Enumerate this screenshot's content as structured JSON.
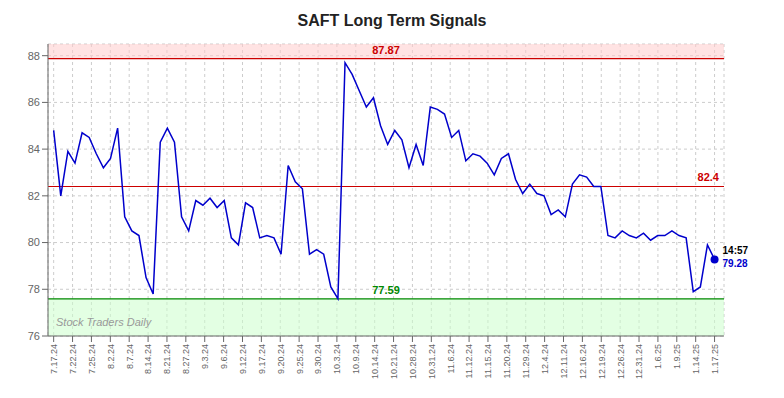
{
  "chart_data": {
    "type": "line",
    "title": "SAFT Long Term Signals",
    "x": [
      0,
      0.3763,
      0.7527,
      1.129,
      1.5054,
      1.8817,
      2.2581,
      2.6344,
      3.0108,
      3.3871,
      3.7634,
      4.1398,
      4.5161,
      4.8925,
      5.2688,
      5.6452,
      6.0215,
      6.3978,
      6.7742,
      7.1505,
      7.5269,
      7.9032,
      8.2796,
      8.6559,
      9.0323,
      9.4086,
      9.7849,
      10.1613,
      10.5376,
      10.914,
      11.2903,
      11.6667,
      12.043,
      12.4194,
      12.7957,
      13.172,
      13.5484,
      13.9247,
      14.3011,
      14.6774,
      15.0538,
      15.4301,
      15.8065,
      16.1828,
      16.5591,
      16.9355,
      17.3118,
      17.6882,
      18.0645,
      18.4409,
      18.8172,
      19.1935,
      19.5699,
      19.9462,
      20.3226,
      20.6989,
      21.0753,
      21.4516,
      21.828,
      22.2043,
      22.5806,
      22.957,
      23.3333,
      23.7097,
      24.086,
      24.4624,
      24.8387,
      25.2151,
      25.5914,
      25.9677,
      26.3441,
      26.7204,
      27.0968,
      27.4731,
      27.8495,
      28.2258,
      28.6022,
      28.9785,
      29.3548,
      29.7312,
      30.1075,
      30.4839,
      30.8602,
      31.2366,
      31.6129,
      31.9892,
      32.3656,
      32.7419,
      33.1183,
      33.4946,
      33.871,
      34.2473,
      34.6237,
      35
    ],
    "values": [
      84.8,
      82.0,
      83.9,
      83.4,
      84.7,
      84.5,
      83.8,
      83.2,
      83.6,
      84.9,
      81.1,
      80.5,
      80.3,
      78.5,
      77.8,
      84.3,
      84.9,
      84.3,
      81.1,
      80.5,
      81.8,
      81.6,
      81.9,
      81.5,
      81.8,
      80.2,
      79.9,
      81.7,
      81.5,
      80.2,
      80.3,
      80.2,
      79.5,
      83.3,
      82.6,
      82.3,
      79.5,
      79.7,
      79.5,
      78.1,
      77.6,
      87.7,
      87.2,
      86.5,
      85.8,
      86.2,
      85.0,
      84.2,
      84.8,
      84.4,
      83.2,
      84.2,
      83.3,
      85.8,
      85.7,
      85.5,
      84.5,
      84.8,
      83.5,
      83.8,
      83.7,
      83.4,
      82.9,
      83.6,
      83.8,
      82.7,
      82.1,
      82.5,
      82.1,
      82.0,
      81.2,
      81.4,
      81.1,
      82.5,
      82.9,
      82.8,
      82.4,
      82.4,
      80.3,
      80.2,
      80.5,
      80.3,
      80.2,
      80.4,
      80.1,
      80.3,
      80.3,
      80.5,
      80.3,
      80.2,
      77.9,
      78.1,
      79.9,
      79.28
    ],
    "color": "#0000cc",
    "xlim": [
      -0.3,
      35.5
    ],
    "xticks": [
      {
        "value": 0,
        "label": "7.17.24"
      },
      {
        "value": 1,
        "label": "7.22.24"
      },
      {
        "value": 2,
        "label": "7.25.24"
      },
      {
        "value": 3,
        "label": "8.2.24"
      },
      {
        "value": 4,
        "label": "8.7.24"
      },
      {
        "value": 5,
        "label": "8.14.24"
      },
      {
        "value": 6,
        "label": "8.21.24"
      },
      {
        "value": 7,
        "label": "8.27.24"
      },
      {
        "value": 8,
        "label": "9.3.24"
      },
      {
        "value": 9,
        "label": "9.6.24"
      },
      {
        "value": 10,
        "label": "9.12.24"
      },
      {
        "value": 11,
        "label": "9.17.24"
      },
      {
        "value": 12,
        "label": "9.20.24"
      },
      {
        "value": 13,
        "label": "9.25.24"
      },
      {
        "value": 14,
        "label": "9.30.24"
      },
      {
        "value": 15,
        "label": "10.3.24"
      },
      {
        "value": 16,
        "label": "10.9.24"
      },
      {
        "value": 17,
        "label": "10.14.24"
      },
      {
        "value": 18,
        "label": "10.21.24"
      },
      {
        "value": 19,
        "label": "10.28.24"
      },
      {
        "value": 20,
        "label": "10.31.24"
      },
      {
        "value": 21,
        "label": "11.6.24"
      },
      {
        "value": 22,
        "label": "11.12.24"
      },
      {
        "value": 23,
        "label": "11.15.24"
      },
      {
        "value": 24,
        "label": "11.20.24"
      },
      {
        "value": 25,
        "label": "11.29.24"
      },
      {
        "value": 26,
        "label": "12.4.24"
      },
      {
        "value": 27,
        "label": "12.11.24"
      },
      {
        "value": 28,
        "label": "12.16.24"
      },
      {
        "value": 29,
        "label": "12.19.24"
      },
      {
        "value": 30,
        "label": "12.26.24"
      },
      {
        "value": 31,
        "label": "12.31.24"
      },
      {
        "value": 32,
        "label": "1.6.25"
      },
      {
        "value": 33,
        "label": "1.9.25"
      },
      {
        "value": 34,
        "label": "1.14.25"
      },
      {
        "value": 35,
        "label": "1.17.25"
      }
    ],
    "ylim": [
      76,
      88.5
    ],
    "yticks": [
      76,
      78,
      80,
      82,
      84,
      86,
      88
    ],
    "grid": true,
    "bands": [
      {
        "y1": 87.87,
        "y2": 88.5,
        "color": "#ffcccc"
      },
      {
        "y1": 76,
        "y2": 77.59,
        "color": "#ccffcc"
      }
    ],
    "hlines": [
      {
        "y": 87.87,
        "label": "87.87",
        "color": "#cc0000"
      },
      {
        "y": 82.4,
        "label": "82.4",
        "color": "#cc0000"
      },
      {
        "y": 77.59,
        "label": "77.59",
        "color": "#008800"
      }
    ],
    "last_point": {
      "x": 35,
      "y": 79.28,
      "labels": [
        "14:57",
        "79.28"
      ]
    },
    "annotations": [
      {
        "text": "Stock Traders Daily"
      }
    ]
  }
}
